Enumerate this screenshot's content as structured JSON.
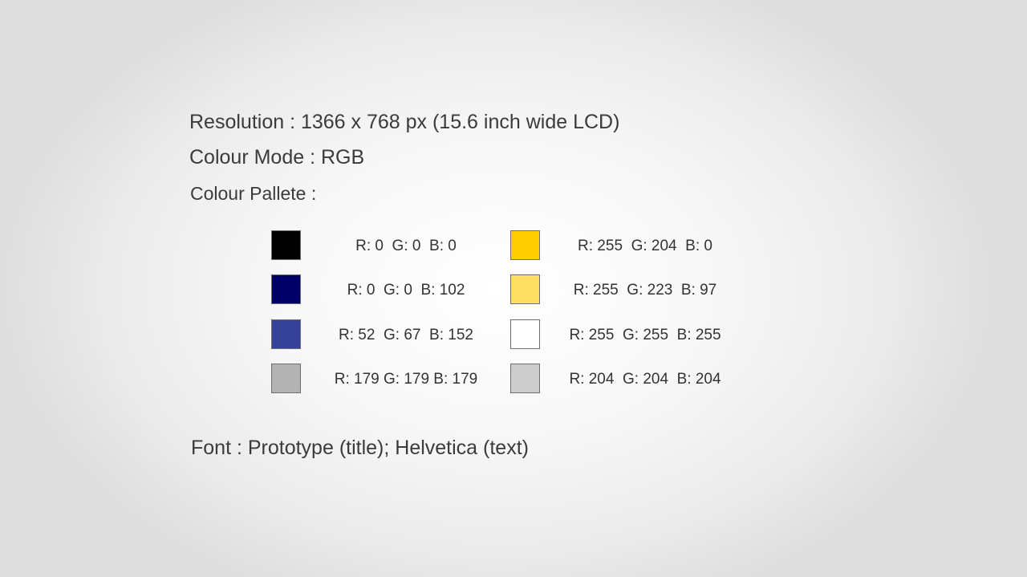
{
  "spec": {
    "resolution": "Resolution : 1366 x 768 px (15.6 inch wide LCD)",
    "colour_mode": "Colour Mode : RGB",
    "palette_heading": "Colour Pallete :",
    "font": "Font : Prototype (title); Helvetica (text)"
  },
  "palette": {
    "left": [
      {
        "label": "R: 0  G: 0  B: 0",
        "color": "#000000"
      },
      {
        "label": "R: 0  G: 0  B: 102",
        "color": "#000066"
      },
      {
        "label": "R: 52  G: 67  B: 152",
        "color": "#344398"
      },
      {
        "label": "R: 179 G: 179 B: 179",
        "color": "#b3b3b3"
      }
    ],
    "right": [
      {
        "label": "R: 255  G: 204  B: 0",
        "color": "#ffcc00"
      },
      {
        "label": "R: 255  G: 223  B: 97",
        "color": "#ffdf61"
      },
      {
        "label": "R: 255  G: 255  B: 255",
        "color": "#ffffff"
      },
      {
        "label": "R: 204  G: 204  B: 204",
        "color": "#cccccc"
      }
    ]
  }
}
